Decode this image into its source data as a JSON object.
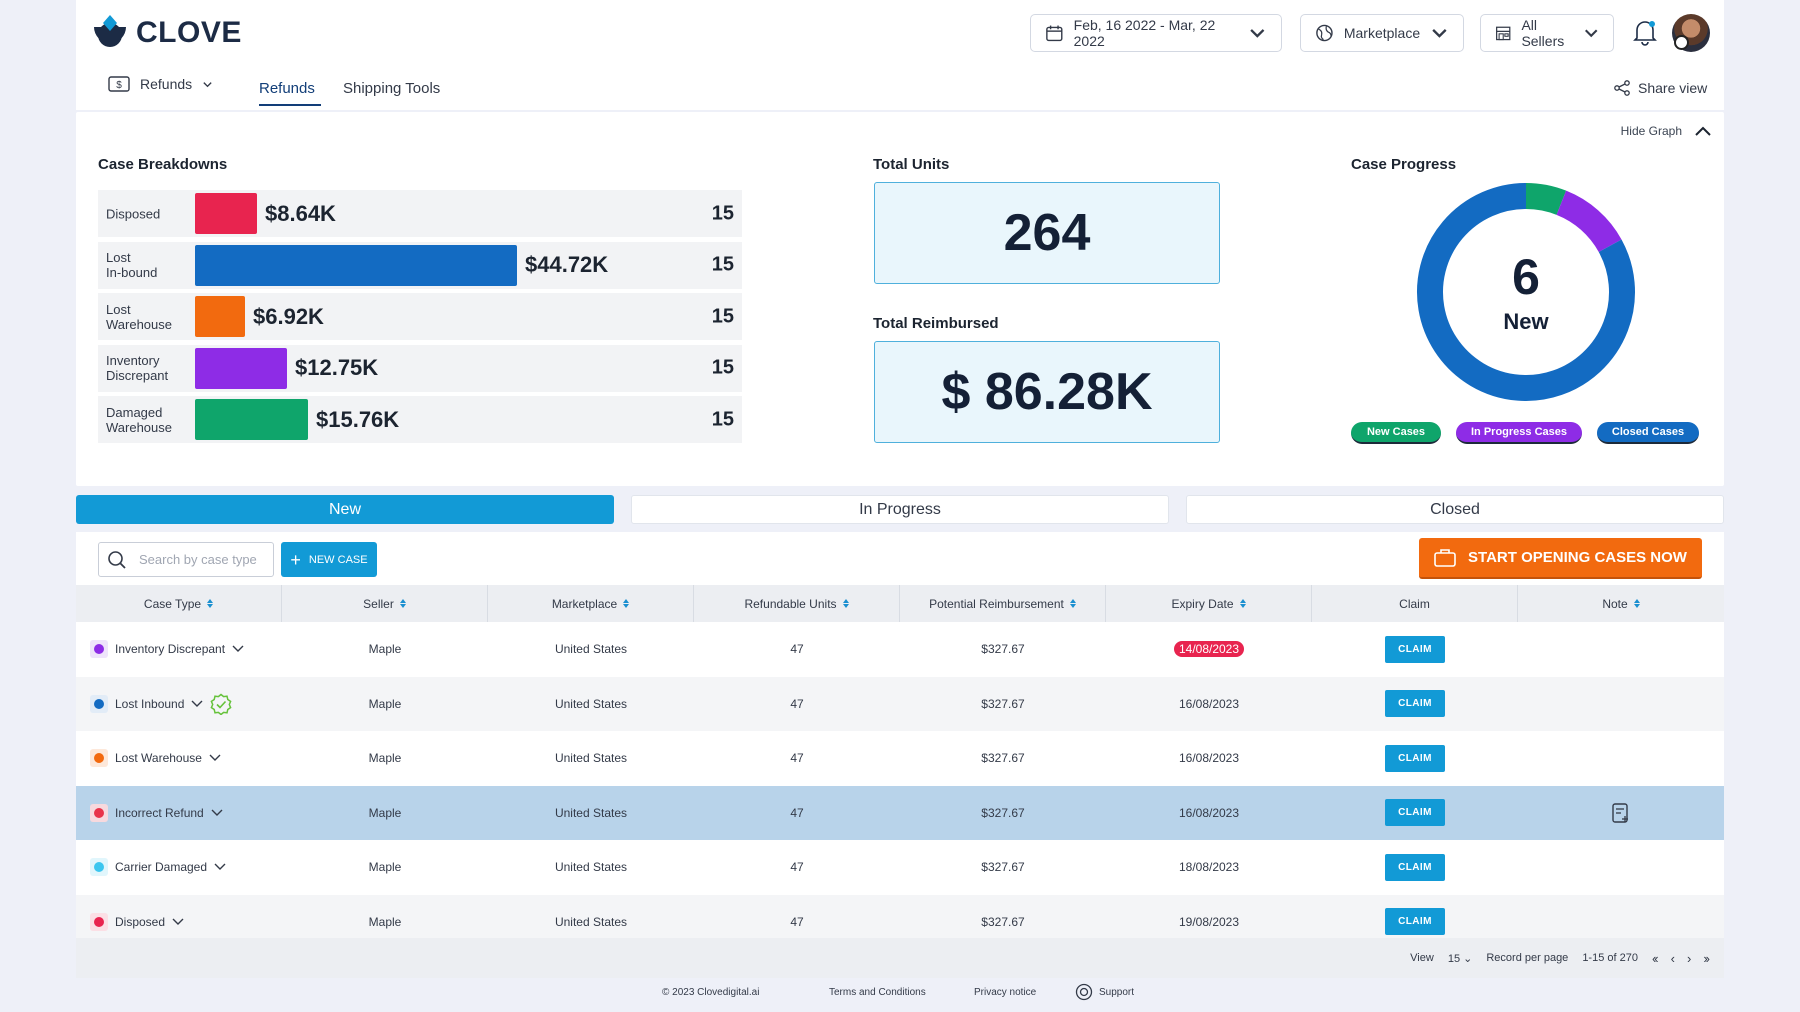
{
  "brand": {
    "name": "CLOVE"
  },
  "header": {
    "date_range": "Feb, 16 2022 - Mar, 22 2022",
    "marketplace": "Marketplace",
    "sellers": "All Sellers"
  },
  "subnav": {
    "section": "Refunds",
    "tabs": [
      "Refunds",
      "Shipping Tools"
    ],
    "share": "Share view"
  },
  "graph": {
    "hide_label": "Hide Graph",
    "breakdown_title": "Case Breakdowns",
    "breakdowns": [
      {
        "label": "Disposed",
        "amount": "$8.64K",
        "count": "15",
        "value": 8.64,
        "color": "#e8244f"
      },
      {
        "label": "Lost\nIn-bound",
        "amount": "$44.72K",
        "count": "15",
        "value": 44.72,
        "color": "#136bc2"
      },
      {
        "label": "Lost\nWarehouse",
        "amount": "$6.92K",
        "count": "15",
        "value": 6.92,
        "color": "#f26a0f"
      },
      {
        "label": "Inventory\nDiscrepant",
        "amount": "$12.75K",
        "count": "15",
        "value": 12.75,
        "color": "#8e2ce6"
      },
      {
        "label": "Damaged\nWarehouse",
        "amount": "$15.76K",
        "count": "15",
        "value": 15.76,
        "color": "#0fa56b"
      }
    ],
    "total_units_title": "Total Units",
    "total_units": "264",
    "total_reimbursed_title": "Total Reimbursed",
    "total_reimbursed": "$ 86.28K",
    "progress_title": "Case Progress",
    "progress_value": "6",
    "progress_label": "New",
    "progress_segments": [
      {
        "name": "New Cases",
        "fraction": 0.06,
        "color": "#0fa56b"
      },
      {
        "name": "In Progress Cases",
        "fraction": 0.11,
        "color": "#8e2ce6"
      },
      {
        "name": "Closed Cases",
        "fraction": 0.83,
        "color": "#136bc2"
      }
    ]
  },
  "status_tabs": [
    "New",
    "In Progress",
    "Closed"
  ],
  "toolbar": {
    "search_placeholder": "Search by case type",
    "new_case": "NEW CASE",
    "start_cases": "START OPENING CASES NOW"
  },
  "table": {
    "columns": [
      "Case Type",
      "Seller",
      "Marketplace",
      "Refundable Units",
      "Potential Reimbursement",
      "Expiry Date",
      "Claim",
      "Note"
    ],
    "rows": [
      {
        "case_type": "Inventory Discrepant",
        "dot": "#8e2ce6",
        "dot_bg": "#efe4fb",
        "seller": "Maple",
        "marketplace": "United States",
        "units": "47",
        "reimbursement": "$327.67",
        "expiry": "14/08/2023",
        "claim": "CLAIM"
      },
      {
        "case_type": "Lost Inbound",
        "dot": "#136bc2",
        "dot_bg": "#e2ecf7",
        "seller": "Maple",
        "marketplace": "United States",
        "units": "47",
        "reimbursement": "$327.67",
        "expiry": "16/08/2023",
        "claim": "CLAIM"
      },
      {
        "case_type": "Lost Warehouse",
        "dot": "#f26a0f",
        "dot_bg": "#fde8da",
        "seller": "Maple",
        "marketplace": "United States",
        "units": "47",
        "reimbursement": "$327.67",
        "expiry": "16/08/2023",
        "claim": "CLAIM"
      },
      {
        "case_type": "Incorrect Refund",
        "dot": "#e8334a",
        "dot_bg": "#f7d9de",
        "seller": "Maple",
        "marketplace": "United States",
        "units": "47",
        "reimbursement": "$327.67",
        "expiry": "16/08/2023",
        "claim": "CLAIM"
      },
      {
        "case_type": "Carrier Damaged",
        "dot": "#3cc6ef",
        "dot_bg": "#e1f6fc",
        "seller": "Maple",
        "marketplace": "United States",
        "units": "47",
        "reimbursement": "$327.67",
        "expiry": "18/08/2023",
        "claim": "CLAIM"
      },
      {
        "case_type": "Disposed",
        "dot": "#e8244f",
        "dot_bg": "#fbdfe5",
        "seller": "Maple",
        "marketplace": "United States",
        "units": "47",
        "reimbursement": "$327.67",
        "expiry": "19/08/2023",
        "claim": "CLAIM"
      }
    ]
  },
  "pager": {
    "view_label": "View",
    "per_page": "15",
    "record_label": "Record per page",
    "range": "1-15 of 270"
  },
  "footer": {
    "copyright": "© 2023 Clovedigital.ai",
    "terms": "Terms and Conditions",
    "privacy": "Privacy notice",
    "support": "Support"
  }
}
